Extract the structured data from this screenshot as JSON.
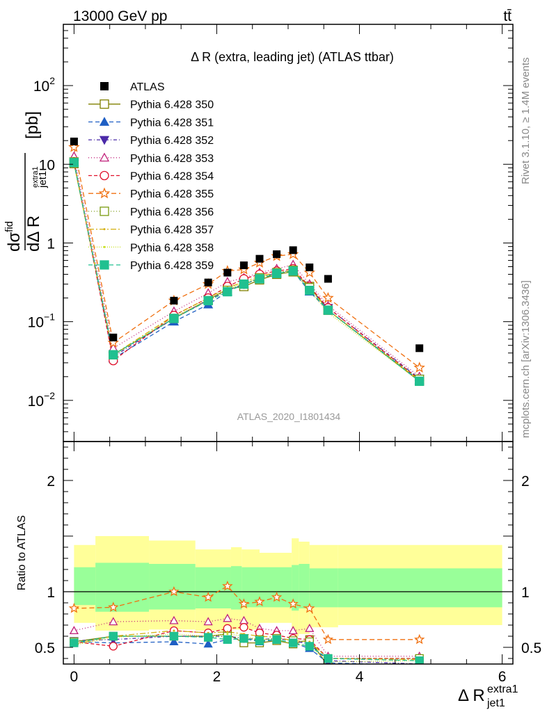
{
  "header": {
    "left": "13000 GeV pp",
    "right": "tt̄"
  },
  "side_text": {
    "rivet": "Rivet 3.1.10, ≥ 1.4M events",
    "mcplots": "mcplots.cern.ch [arXiv:1306.3436]"
  },
  "chart_data": {
    "type": "line",
    "title": "Δ R (extra, leading jet) (ATLAS ttbar)",
    "watermark": "ATLAS_2020_I1801434",
    "ylabel_text": "dσfid / dΔ R [pb]",
    "ylabel_main_top": "dσ",
    "ylabel_main_sup": "fid",
    "ylabel_main_bot": "dΔ R",
    "ylabel_sub": "jet1",
    "ylabel_subsup": "extra1",
    "ylabel_unit": "[pb]",
    "xlabel_main": "Δ R",
    "xlabel_sub": "jet1",
    "xlabel_sup": "extra1",
    "ratio_ylabel": "Ratio to ATLAS",
    "x_range": [
      -0.15,
      6.15
    ],
    "y_log": true,
    "y_range": [
      0.003,
      600
    ],
    "ratio_range": [
      0.35,
      2.35
    ],
    "x_ticks": [
      "0",
      "2",
      "4",
      "6"
    ],
    "y_ticks": [
      {
        "base": "10",
        "exp": "−2",
        "v": 0.01
      },
      {
        "base": "10",
        "exp": "−1",
        "v": 0.1
      },
      {
        "base": "1",
        "exp": "",
        "v": 1
      },
      {
        "base": "10",
        "exp": "",
        "v": 10
      },
      {
        "base": "10",
        "exp": "2",
        "v": 100
      }
    ],
    "ratio_ticks": [
      "0.5",
      "1",
      "2"
    ],
    "x": [
      0.0,
      0.55,
      1.4,
      1.88,
      2.15,
      2.38,
      2.6,
      2.84,
      3.07,
      3.3,
      3.56,
      4.84
    ],
    "data": {
      "name": "ATLAS",
      "values": [
        19.5,
        0.063,
        0.185,
        0.315,
        0.42,
        0.52,
        0.63,
        0.72,
        0.81,
        0.49,
        0.35,
        0.046
      ]
    },
    "band_edges": [
      0.0,
      0.3,
      1.05,
      1.7,
      2.2,
      2.35,
      2.6,
      3.05,
      3.15,
      3.3,
      3.7,
      6.0
    ],
    "band_inner": [
      [
        0.88,
        1.22
      ],
      [
        0.82,
        1.26
      ],
      [
        0.84,
        1.25
      ],
      [
        0.85,
        1.22
      ],
      [
        0.84,
        1.23
      ],
      [
        0.86,
        1.22
      ],
      [
        0.86,
        1.22
      ],
      [
        0.83,
        1.24
      ],
      [
        0.85,
        1.25
      ],
      [
        0.86,
        1.21
      ],
      [
        0.86,
        1.21
      ]
    ],
    "band_outer": [
      [
        0.72,
        1.42
      ],
      [
        0.65,
        1.5
      ],
      [
        0.66,
        1.46
      ],
      [
        0.65,
        1.38
      ],
      [
        0.66,
        1.4
      ],
      [
        0.66,
        1.38
      ],
      [
        0.72,
        1.35
      ],
      [
        0.6,
        1.48
      ],
      [
        0.62,
        1.45
      ],
      [
        0.68,
        1.42
      ],
      [
        0.7,
        1.42
      ]
    ],
    "series": [
      {
        "name": "Pythia 6.428 350",
        "color": "#808000",
        "marker": "square-open",
        "dash": "",
        "values": [
          10.2,
          0.038,
          0.11,
          0.19,
          0.26,
          0.28,
          0.34,
          0.4,
          0.43,
          0.28,
          0.14,
          0.0175
        ]
      },
      {
        "name": "Pythia 6.428 351",
        "color": "#1f5fc4",
        "marker": "triangle-up",
        "dash": "6,4",
        "values": [
          10.7,
          0.034,
          0.1,
          0.165,
          0.24,
          0.3,
          0.35,
          0.41,
          0.44,
          0.24,
          0.14,
          0.018
        ]
      },
      {
        "name": "Pythia 6.428 352",
        "color": "#4b2aa8",
        "marker": "triangle-down",
        "dash": "5,3,1,3",
        "values": [
          10.9,
          0.036,
          0.11,
          0.19,
          0.25,
          0.3,
          0.36,
          0.42,
          0.45,
          0.26,
          0.15,
          0.019
        ]
      },
      {
        "name": "Pythia 6.428 353",
        "color": "#c0207a",
        "marker": "triangle-up-open",
        "dash": "1,3",
        "values": [
          12.6,
          0.046,
          0.135,
          0.23,
          0.32,
          0.36,
          0.42,
          0.47,
          0.53,
          0.3,
          0.16,
          0.02
        ]
      },
      {
        "name": "Pythia 6.428 354",
        "color": "#e0102a",
        "marker": "circle-open",
        "dash": "5,3",
        "values": [
          10.8,
          0.032,
          0.12,
          0.2,
          0.28,
          0.35,
          0.4,
          0.44,
          0.47,
          0.28,
          0.15,
          0.0185
        ]
      },
      {
        "name": "Pythia 6.428 355",
        "color": "#f07010",
        "marker": "star-open",
        "dash": "7,4",
        "values": [
          16.5,
          0.054,
          0.185,
          0.3,
          0.44,
          0.46,
          0.56,
          0.68,
          0.72,
          0.42,
          0.2,
          0.026
        ]
      },
      {
        "name": "Pythia 6.428 356",
        "color": "#7a9a10",
        "marker": "square-open",
        "dash": "1,3",
        "values": [
          10.7,
          0.038,
          0.11,
          0.185,
          0.25,
          0.3,
          0.36,
          0.42,
          0.45,
          0.27,
          0.14,
          0.0185
        ]
      },
      {
        "name": "Pythia 6.428 357",
        "color": "#d4b010",
        "marker": "none",
        "dash": "8,3,2,3",
        "values": [
          10.4,
          0.038,
          0.12,
          0.2,
          0.27,
          0.32,
          0.38,
          0.42,
          0.45,
          0.27,
          0.14,
          0.018
        ]
      },
      {
        "name": "Pythia 6.428 358",
        "color": "#c8e020",
        "marker": "none",
        "dash": "1,2",
        "values": [
          10.2,
          0.037,
          0.115,
          0.19,
          0.26,
          0.31,
          0.36,
          0.41,
          0.43,
          0.25,
          0.13,
          0.0175
        ]
      },
      {
        "name": "Pythia 6.428 359",
        "color": "#20c090",
        "marker": "square",
        "dash": "6,4",
        "values": [
          10.5,
          0.038,
          0.11,
          0.185,
          0.24,
          0.3,
          0.35,
          0.41,
          0.44,
          0.25,
          0.14,
          0.0175
        ]
      }
    ],
    "ratio_series": [
      [
        0.55,
        0.6,
        0.6,
        0.6,
        0.62,
        0.54,
        0.54,
        0.56,
        0.53,
        0.57,
        0.33,
        0.33
      ],
      [
        0.55,
        0.54,
        0.55,
        0.53,
        0.57,
        0.58,
        0.55,
        0.57,
        0.54,
        0.49,
        0.36,
        0.34
      ],
      [
        0.56,
        0.57,
        0.6,
        0.6,
        0.6,
        0.58,
        0.57,
        0.58,
        0.56,
        0.53,
        0.38,
        0.35
      ],
      [
        0.65,
        0.73,
        0.74,
        0.73,
        0.76,
        0.74,
        0.67,
        0.65,
        0.65,
        0.67,
        0.42,
        0.42
      ],
      [
        0.55,
        0.51,
        0.65,
        0.63,
        0.67,
        0.68,
        0.63,
        0.61,
        0.58,
        0.57,
        0.4,
        0.4
      ],
      [
        0.85,
        0.86,
        1.0,
        0.95,
        1.05,
        0.89,
        0.91,
        0.95,
        0.89,
        0.85,
        0.57,
        0.57
      ],
      [
        0.55,
        0.6,
        0.6,
        0.59,
        0.6,
        0.58,
        0.57,
        0.58,
        0.56,
        0.55,
        0.4,
        0.4
      ],
      [
        0.53,
        0.6,
        0.65,
        0.63,
        0.64,
        0.62,
        0.6,
        0.59,
        0.56,
        0.55,
        0.4,
        0.39
      ],
      [
        0.52,
        0.59,
        0.62,
        0.6,
        0.62,
        0.6,
        0.57,
        0.57,
        0.53,
        0.51,
        0.37,
        0.38
      ],
      [
        0.54,
        0.6,
        0.6,
        0.59,
        0.57,
        0.58,
        0.56,
        0.57,
        0.54,
        0.51,
        0.4,
        0.38
      ]
    ]
  }
}
